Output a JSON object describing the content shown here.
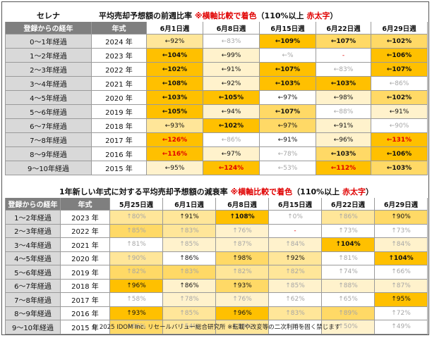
{
  "t1": {
    "brand": "セレナ",
    "title_prefix": "平均売却予想額の前週比率 ",
    "title_note": "※横軸比較で着色",
    "title_mid": "（110%以上 ",
    "title_red": "赤太字",
    "title_end": "）",
    "col_headers": [
      "登録からの経年",
      "年式",
      "6月1日週",
      "6月8日週",
      "6月15日週",
      "6月22日週",
      "6月29日週"
    ],
    "rows": [
      {
        "age": "0～1年経過",
        "year": "2024 年",
        "cells": [
          {
            "t": "←92%",
            "c": 2
          },
          {
            "t": "←83%",
            "c": 0,
            "g": 1
          },
          {
            "t": "←109%",
            "c": 4,
            "b": 1
          },
          {
            "t": "←107%",
            "c": 3,
            "b": 1
          },
          {
            "t": "←102%",
            "c": 3,
            "b": 1
          }
        ]
      },
      {
        "age": "1～2年経過",
        "year": "2023 年",
        "cells": [
          {
            "t": "←104%",
            "c": 4,
            "b": 1
          },
          {
            "t": "←99%",
            "c": 1
          },
          {
            "t": "←%",
            "c": 0,
            "g": 1
          },
          {
            "t": "-",
            "c": 0,
            "r": 1
          },
          {
            "t": "←106%",
            "c": 4,
            "b": 1
          }
        ]
      },
      {
        "age": "2～3年経過",
        "year": "2022 年",
        "cells": [
          {
            "t": "←102%",
            "c": 4,
            "b": 1
          },
          {
            "t": "←91%",
            "c": 1
          },
          {
            "t": "←107%",
            "c": 4,
            "b": 1
          },
          {
            "t": "←83%",
            "c": 0,
            "g": 1
          },
          {
            "t": "←107%",
            "c": 4,
            "b": 1
          }
        ]
      },
      {
        "age": "3～4年経過",
        "year": "2021 年",
        "cells": [
          {
            "t": "←108%",
            "c": 4,
            "b": 1
          },
          {
            "t": "←92%",
            "c": 1
          },
          {
            "t": "←103%",
            "c": 4,
            "b": 1
          },
          {
            "t": "←103%",
            "c": 4,
            "b": 1
          },
          {
            "t": "←86%",
            "c": 0,
            "g": 1
          }
        ]
      },
      {
        "age": "4～5年経過",
        "year": "2020 年",
        "cells": [
          {
            "t": "←103%",
            "c": 4,
            "b": 1
          },
          {
            "t": "←105%",
            "c": 4,
            "b": 1
          },
          {
            "t": "←97%",
            "c": 0
          },
          {
            "t": "←98%",
            "c": 1
          },
          {
            "t": "←102%",
            "c": 3,
            "b": 1
          }
        ]
      },
      {
        "age": "5～6年経過",
        "year": "2019 年",
        "cells": [
          {
            "t": "←105%",
            "c": 4,
            "b": 1
          },
          {
            "t": "←94%",
            "c": 1
          },
          {
            "t": "←107%",
            "c": 3,
            "b": 1
          },
          {
            "t": "←88%",
            "c": 0,
            "g": 1
          },
          {
            "t": "←91%",
            "c": 1
          }
        ]
      },
      {
        "age": "6～7年経過",
        "year": "2018 年",
        "cells": [
          {
            "t": "←93%",
            "c": 2
          },
          {
            "t": "←102%",
            "c": 4,
            "b": 1
          },
          {
            "t": "←97%",
            "c": 3
          },
          {
            "t": "←91%",
            "c": 1
          },
          {
            "t": "←90%",
            "c": 0,
            "g": 1
          }
        ]
      },
      {
        "age": "7～8年経過",
        "year": "2017 年",
        "cells": [
          {
            "t": "←126%",
            "c": 4,
            "r": 1,
            "b": 1
          },
          {
            "t": "←86%",
            "c": 0,
            "g": 1
          },
          {
            "t": "←91%",
            "c": 0
          },
          {
            "t": "←96%",
            "c": 1
          },
          {
            "t": "←131%",
            "c": 4,
            "r": 1,
            "b": 1
          }
        ]
      },
      {
        "age": "8～9年経過",
        "year": "2016 年",
        "cells": [
          {
            "t": "←116%",
            "c": 4,
            "r": 1,
            "b": 1
          },
          {
            "t": "←97%",
            "c": 1
          },
          {
            "t": "←78%",
            "c": 0,
            "g": 1
          },
          {
            "t": "←103%",
            "c": 3,
            "b": 1
          },
          {
            "t": "←106%",
            "c": 4,
            "b": 1
          }
        ]
      },
      {
        "age": "9～10年経過",
        "year": "2015 年",
        "cells": [
          {
            "t": "←95%",
            "c": 1
          },
          {
            "t": "←124%",
            "c": 4,
            "r": 1,
            "b": 1
          },
          {
            "t": "←53%",
            "c": 0,
            "g": 1
          },
          {
            "t": "←112%",
            "c": 4,
            "r": 1,
            "b": 1
          },
          {
            "t": "←103%",
            "c": 3,
            "b": 1
          }
        ]
      }
    ]
  },
  "t2": {
    "title_prefix": "1年新しい年式に対する平均売却予想額の減衰率 ",
    "title_note": "※横軸比較で着色",
    "title_mid": "（110%以上 ",
    "title_red": "赤太字",
    "title_end": "）",
    "col_headers": [
      "登録からの経年",
      "年式",
      "5月25日週",
      "6月1日週",
      "6月8日週",
      "6月15日週",
      "6月22日週",
      "6月29日週"
    ],
    "rows": [
      {
        "age": "1～2年経過",
        "year": "2023 年",
        "cells": [
          {
            "t": "↑80%",
            "c": 2,
            "g": 1
          },
          {
            "t": "↑91%",
            "c": 2
          },
          {
            "t": "↑108%",
            "c": 4,
            "b": 1
          },
          {
            "t": "↑0%",
            "c": 0,
            "g": 1
          },
          {
            "t": "↑86%",
            "c": 2,
            "g": 1
          },
          {
            "t": "↑90%",
            "c": 3
          }
        ]
      },
      {
        "age": "2～3年経過",
        "year": "2022 年",
        "cells": [
          {
            "t": "↑85%",
            "c": 3,
            "g": 1
          },
          {
            "t": "↑83%",
            "c": 2,
            "g": 1
          },
          {
            "t": "↑76%",
            "c": 1,
            "g": 1
          },
          {
            "t": "-",
            "c": 0,
            "r": 1
          },
          {
            "t": "↑73%",
            "c": 0,
            "g": 1
          },
          {
            "t": "↑73%",
            "c": 0,
            "g": 1
          }
        ]
      },
      {
        "age": "3～4年経過",
        "year": "2021 年",
        "cells": [
          {
            "t": "↑81%",
            "c": 0,
            "g": 1
          },
          {
            "t": "↑85%",
            "c": 1,
            "g": 1
          },
          {
            "t": "↑87%",
            "c": 1,
            "g": 1
          },
          {
            "t": "↑84%",
            "c": 1,
            "g": 1
          },
          {
            "t": "↑104%",
            "c": 4,
            "b": 1
          },
          {
            "t": "↑84%",
            "c": 1,
            "g": 1
          }
        ]
      },
      {
        "age": "4～5年経過",
        "year": "2020 年",
        "cells": [
          {
            "t": "↑90%",
            "c": 2,
            "g": 1
          },
          {
            "t": "↑86%",
            "c": 0
          },
          {
            "t": "↑98%",
            "c": 3
          },
          {
            "t": "↑92%",
            "c": 2
          },
          {
            "t": "↑81%",
            "c": 0,
            "g": 1
          },
          {
            "t": "↑104%",
            "c": 4,
            "b": 1
          }
        ]
      },
      {
        "age": "5～6年経過",
        "year": "2019 年",
        "cells": [
          {
            "t": "↑82%",
            "c": 3,
            "g": 1
          },
          {
            "t": "↑83%",
            "c": 3,
            "g": 1
          },
          {
            "t": "↑82%",
            "c": 2,
            "g": 1
          },
          {
            "t": "↑82%",
            "c": 2,
            "g": 1
          },
          {
            "t": "↑74%",
            "c": 0,
            "g": 1
          },
          {
            "t": "↑66%",
            "c": 0,
            "g": 1
          }
        ]
      },
      {
        "age": "6～7年経過",
        "year": "2018 年",
        "cells": [
          {
            "t": "↑96%",
            "c": 4
          },
          {
            "t": "↑86%",
            "c": 1
          },
          {
            "t": "↑93%",
            "c": 3
          },
          {
            "t": "↑85%",
            "c": 1,
            "g": 1
          },
          {
            "t": "↑88%",
            "c": 1,
            "g": 1
          },
          {
            "t": "↑87%",
            "c": 1,
            "g": 1
          }
        ]
      },
      {
        "age": "7～8年経過",
        "year": "2017 年",
        "cells": [
          {
            "t": "↑58%",
            "c": 0,
            "g": 1
          },
          {
            "t": "↑78%",
            "c": 1,
            "g": 1
          },
          {
            "t": "↑76%",
            "c": 1,
            "g": 1
          },
          {
            "t": "↑62%",
            "c": 0,
            "g": 1
          },
          {
            "t": "↑65%",
            "c": 0,
            "g": 1
          },
          {
            "t": "↑95%",
            "c": 4
          }
        ]
      },
      {
        "age": "8～9年経過",
        "year": "2016 年",
        "cells": [
          {
            "t": "↑93%",
            "c": 4
          },
          {
            "t": "↑85%",
            "c": 2,
            "g": 1
          },
          {
            "t": "↑96%",
            "c": 4
          },
          {
            "t": "↑83%",
            "c": 2,
            "g": 1
          },
          {
            "t": "↑89%",
            "c": 3,
            "g": 1
          },
          {
            "t": "↑72%",
            "c": 0,
            "g": 1
          }
        ]
      },
      {
        "age": "9～10年経過",
        "year": "2015 年",
        "cells": [
          {
            "t": "↑66%",
            "c": 3,
            "g": 1
          },
          {
            "t": "↑54%",
            "c": 2,
            "g": 1
          },
          {
            "t": "↑58%",
            "c": 2,
            "g": 1
          },
          {
            "t": "↑46%",
            "c": 0,
            "g": 1
          },
          {
            "t": "↑50%",
            "c": 1,
            "g": 1
          },
          {
            "t": "↑49%",
            "c": 0,
            "g": 1
          }
        ]
      }
    ]
  },
  "footer": "© 2025 IDOM Inc. リセールバリュー総合研究所 ※転載や改変等の二次利用を固く禁じます"
}
